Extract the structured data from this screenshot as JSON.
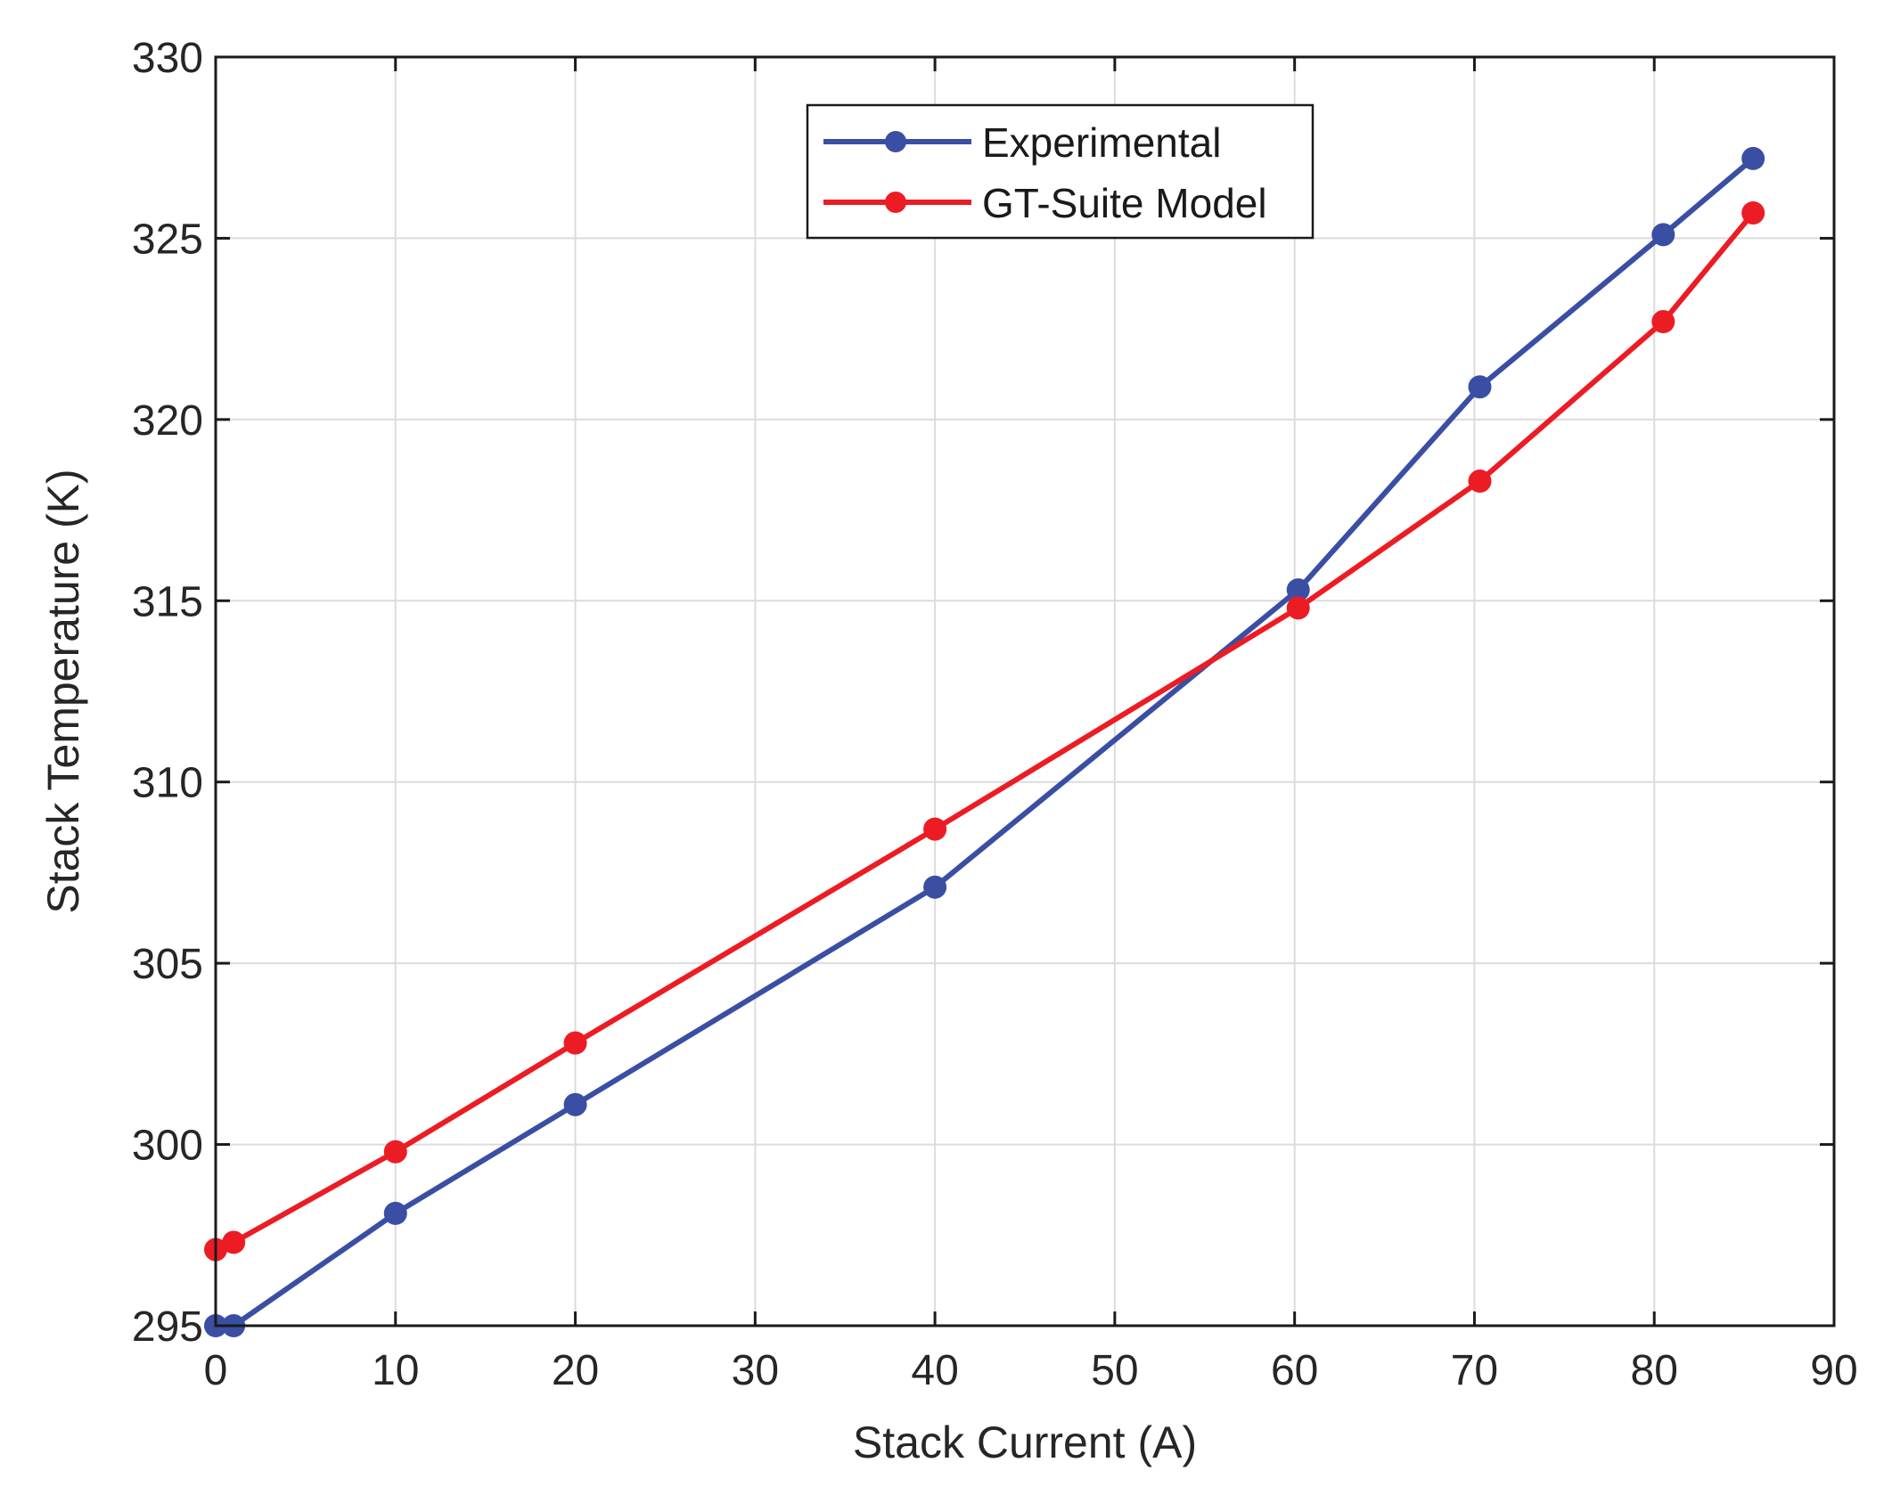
{
  "chart_data": {
    "type": "line",
    "title": "",
    "xlabel": "Stack Current (A)",
    "ylabel": "Stack Temperature (K)",
    "xlim": [
      0,
      90
    ],
    "ylim": [
      295,
      330
    ],
    "xticks": [
      0,
      10,
      20,
      30,
      40,
      50,
      60,
      70,
      80,
      90
    ],
    "yticks": [
      295,
      300,
      305,
      310,
      315,
      320,
      325,
      330
    ],
    "grid": true,
    "legend_position": "top-center",
    "series": [
      {
        "name": "Experimental",
        "color": "#3a4fa3",
        "x": [
          0,
          1,
          10,
          20,
          40,
          60.2,
          70.3,
          80.5,
          85.5
        ],
        "y": [
          295.0,
          295.0,
          298.1,
          301.1,
          307.1,
          315.3,
          320.9,
          325.1,
          327.2
        ]
      },
      {
        "name": "GT-Suite Model",
        "color": "#ec1c24",
        "x": [
          0,
          1,
          10,
          20,
          40,
          60.2,
          70.3,
          80.5,
          85.5
        ],
        "y": [
          297.1,
          297.3,
          299.8,
          302.8,
          308.7,
          314.8,
          318.3,
          322.7,
          325.7
        ]
      }
    ]
  }
}
